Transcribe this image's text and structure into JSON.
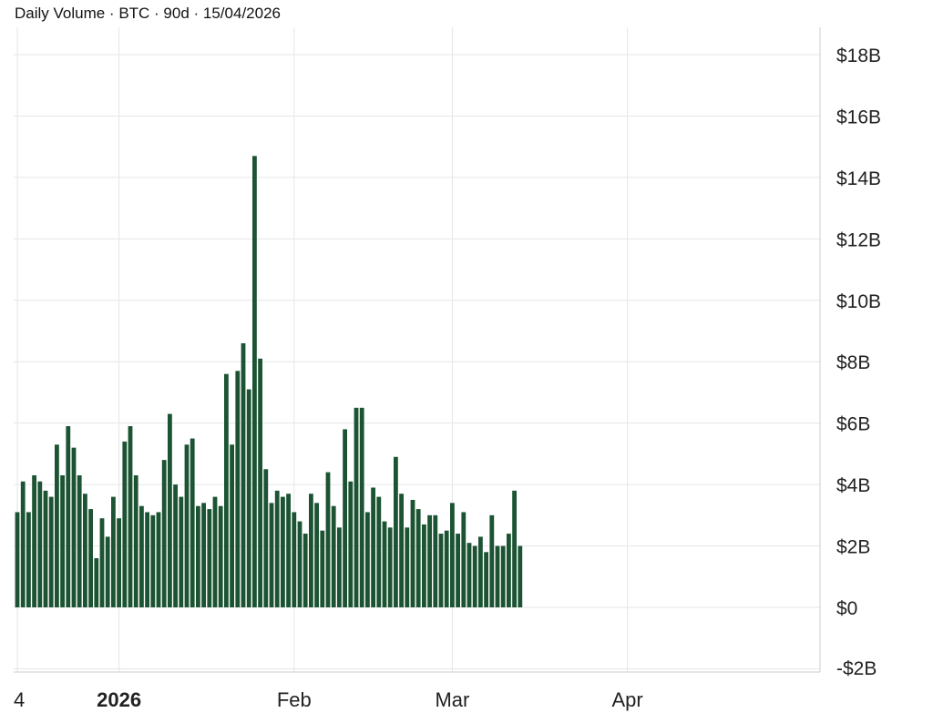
{
  "title": "Daily Volume · BTC · 90d · 15/04/2026",
  "colors": {
    "bar": "#1b5333",
    "grid": "#e6e6e6",
    "axis": "#cccccc",
    "text": "#222222"
  },
  "chart_data": {
    "type": "bar",
    "title": "Daily Volume · BTC · 90d · 15/04/2026",
    "y_axis_position": "right",
    "ylim": [
      -2,
      18.5
    ],
    "y_unit": "$B",
    "y_ticks": [
      {
        "value": 18,
        "label": "$18B"
      },
      {
        "value": 16,
        "label": "$16B"
      },
      {
        "value": 14,
        "label": "$14B"
      },
      {
        "value": 12,
        "label": "$12B"
      },
      {
        "value": 10,
        "label": "$10B"
      },
      {
        "value": 8,
        "label": "$8B"
      },
      {
        "value": 6,
        "label": "$6B"
      },
      {
        "value": 4,
        "label": "$4B"
      },
      {
        "value": 2,
        "label": "$2B"
      },
      {
        "value": 0,
        "label": "$0"
      },
      {
        "value": -2,
        "label": "-$2B"
      }
    ],
    "x_range": [
      "2025-12-16",
      "2026-04-15"
    ],
    "x_ticks": [
      {
        "date": "2025-12-14",
        "label": "4",
        "bold": false
      },
      {
        "date": "2026-01-01",
        "label": "2026",
        "bold": true
      },
      {
        "date": "2026-02-01",
        "label": "Feb",
        "bold": false
      },
      {
        "date": "2026-03-01",
        "label": "Mar",
        "bold": false
      },
      {
        "date": "2026-04-01",
        "label": "Apr",
        "bold": false
      }
    ],
    "grid": true,
    "legend": "none",
    "series": [
      {
        "start_date": "2025-12-14",
        "values": [
          3.1,
          4.1,
          3.1,
          4.3,
          4.1,
          3.8,
          3.6,
          5.3,
          4.3,
          5.9,
          5.2,
          4.3,
          3.7,
          3.2,
          1.6,
          2.9,
          2.3,
          3.6,
          2.9,
          5.4,
          5.9,
          4.3,
          3.3,
          3.1,
          3.0,
          3.1,
          4.8,
          6.3,
          4.0,
          3.6,
          5.3,
          5.5,
          3.3,
          3.4,
          3.2,
          3.6,
          3.3,
          7.6,
          5.3,
          7.7,
          8.6,
          7.1,
          14.7,
          8.1,
          4.5,
          3.4,
          3.8,
          3.6,
          3.7,
          3.1,
          2.8,
          2.4,
          3.7,
          3.4,
          2.5,
          4.4,
          3.3,
          2.6,
          5.8,
          4.1,
          6.5,
          6.5,
          3.1,
          3.9,
          3.6,
          2.8,
          2.6,
          4.9,
          3.7,
          2.6,
          3.5,
          3.2,
          2.7,
          3.0,
          3.0,
          2.4,
          2.5,
          3.4,
          2.4,
          3.1,
          2.1,
          2.0,
          2.3,
          1.8,
          3.0,
          2.0,
          2.0,
          2.4,
          3.8,
          2.0
        ]
      }
    ]
  }
}
